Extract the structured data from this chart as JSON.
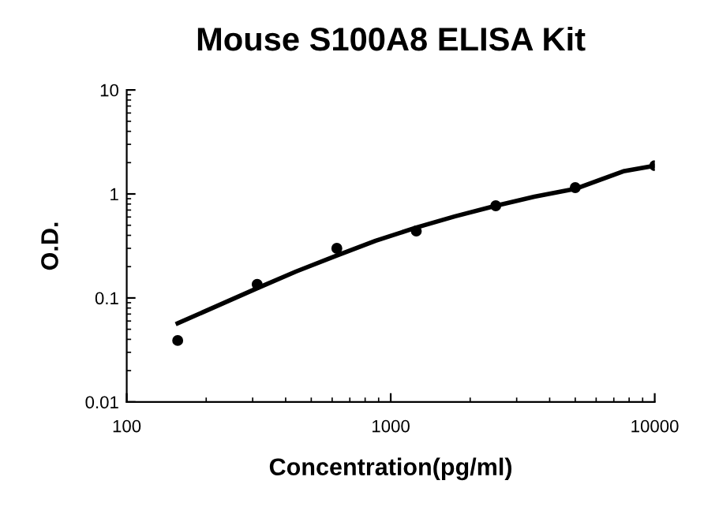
{
  "chart_data": {
    "type": "scatter",
    "title": "Mouse S100A8 ELISA Kit",
    "xlabel": "Concentration(pg/ml)",
    "ylabel": "O.D.",
    "log": "xy",
    "xlim": [
      100,
      10000
    ],
    "xticks": [
      100,
      1000,
      10000
    ],
    "ylim": [
      0.01,
      10
    ],
    "yticks": [
      0.01,
      0.1,
      1,
      10
    ],
    "grid": false,
    "legend": false,
    "series": [
      {
        "color": "#000000",
        "marker": "circle",
        "x": [
          156,
          312,
          625,
          1250,
          2500,
          5000,
          10000
        ],
        "values": [
          0.039,
          0.135,
          0.3,
          0.44,
          0.77,
          1.15,
          1.87
        ]
      },
      {
        "type": "line",
        "color": "#000000",
        "marker": "none",
        "line_style": "solid",
        "x": [
          156,
          312,
          439,
          625,
          877,
          1250,
          1754,
          2500,
          3500,
          5000,
          7600,
          10000
        ],
        "values": [
          0.057,
          0.124,
          0.18,
          0.256,
          0.355,
          0.475,
          0.61,
          0.77,
          0.94,
          1.12,
          1.65,
          1.87
        ]
      }
    ]
  }
}
